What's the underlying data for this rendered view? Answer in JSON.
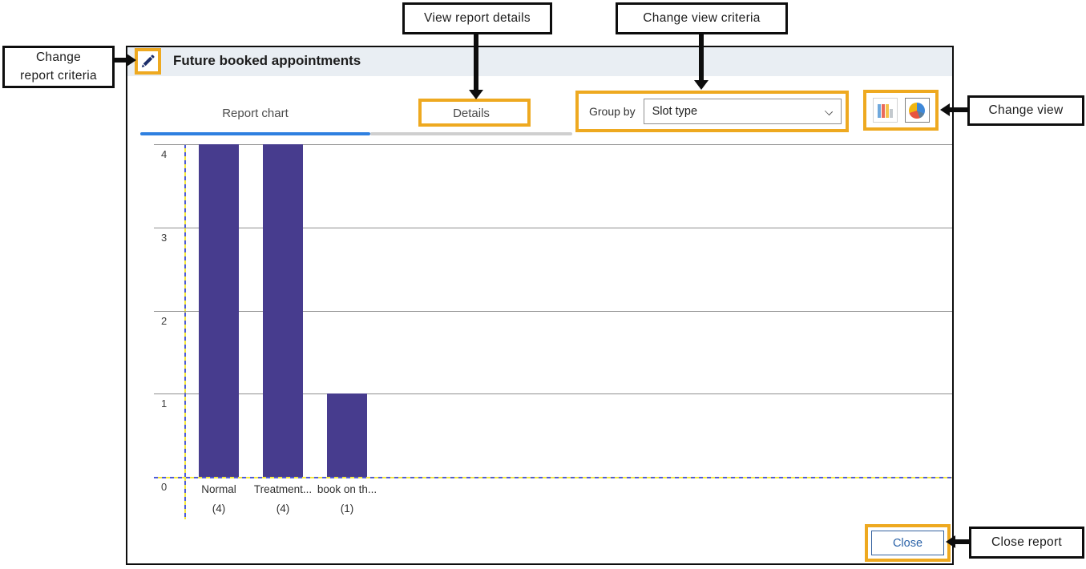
{
  "annotations": {
    "change_report_criteria": {
      "lines": [
        "Change",
        "report criteria"
      ]
    },
    "view_report_details": {
      "label": "View report details"
    },
    "change_view_criteria": {
      "label": "Change view criteria"
    },
    "change_view": {
      "label": "Change view"
    },
    "close_report": {
      "label": "Close report"
    }
  },
  "window": {
    "title": "Future booked appointments",
    "tabs": [
      {
        "label": "Report chart",
        "active": true
      },
      {
        "label": "Details",
        "active": false
      }
    ],
    "group_by": {
      "label": "Group by",
      "selected_option": "Slot type"
    },
    "view_toggle": {
      "options": [
        "bar-chart-view-icon",
        "pie-chart-view-icon"
      ],
      "highlighted": "pie"
    },
    "close_button_label": "Close"
  },
  "chart_data": {
    "type": "bar",
    "title": "Future booked appointments",
    "categories": [
      "Normal",
      "Treatment...",
      "book on th..."
    ],
    "values": [
      4,
      4,
      1
    ],
    "count_labels": [
      "(4)",
      "(4)",
      "(1)"
    ],
    "yticks": [
      4,
      3,
      2,
      1,
      0
    ],
    "ylim": [
      0,
      4
    ],
    "xlabel": "",
    "ylabel": "",
    "grid": true,
    "legend": "none",
    "bar_color": "#473C8E"
  },
  "colors": {
    "highlight_orange": "#EEA920",
    "bar_purple": "#473C8E",
    "active_tab_blue": "#2F80E0",
    "titlebar_bg": "#E9EEF3",
    "close_text_blue": "#2a62a8",
    "axis_dash_blue": "#4f5cd6",
    "axis_dash_yellow": "#f5e93f",
    "gridline_gray": "#8f8f8f"
  }
}
